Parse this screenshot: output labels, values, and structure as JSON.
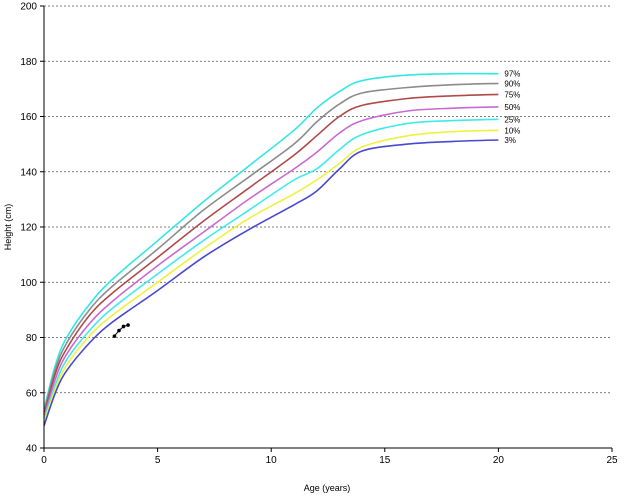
{
  "chart_data": {
    "type": "line",
    "title": "",
    "xlabel": "Age (years)",
    "ylabel": "Height (cm)",
    "xlim": [
      0,
      25
    ],
    "ylim": [
      40,
      200
    ],
    "xticks": [
      0,
      5,
      10,
      15,
      20,
      25
    ],
    "yticks": [
      40,
      60,
      80,
      100,
      120,
      140,
      160,
      180,
      200
    ],
    "grid": "horizontal dashed",
    "legend": "none",
    "series": [
      {
        "name": "97%",
        "color": "#33e6e6",
        "points": [
          [
            0,
            54
          ],
          [
            0.5,
            70
          ],
          [
            1,
            80
          ],
          [
            2,
            92
          ],
          [
            3,
            101
          ],
          [
            5,
            115
          ],
          [
            7,
            129
          ],
          [
            9,
            142
          ],
          [
            11,
            155
          ],
          [
            12,
            163
          ],
          [
            13,
            169
          ],
          [
            14,
            173
          ],
          [
            16,
            175
          ],
          [
            18,
            175.5
          ],
          [
            20,
            175.5
          ]
        ]
      },
      {
        "name": "90%",
        "color": "#8c8c8c",
        "points": [
          [
            0,
            53
          ],
          [
            0.5,
            68.5
          ],
          [
            1,
            78
          ],
          [
            2,
            90
          ],
          [
            3,
            98.5
          ],
          [
            5,
            112
          ],
          [
            7,
            126
          ],
          [
            9,
            138
          ],
          [
            11,
            150
          ],
          [
            12,
            158
          ],
          [
            13,
            164.5
          ],
          [
            14,
            168.5
          ],
          [
            16,
            170.5
          ],
          [
            18,
            171.5
          ],
          [
            20,
            172
          ]
        ]
      },
      {
        "name": "75%",
        "color": "#b04a4a",
        "points": [
          [
            0,
            52
          ],
          [
            0.5,
            67
          ],
          [
            1,
            76
          ],
          [
            2,
            88
          ],
          [
            3,
            96
          ],
          [
            5,
            109
          ],
          [
            7,
            122
          ],
          [
            9,
            134
          ],
          [
            11,
            146
          ],
          [
            12,
            153
          ],
          [
            13,
            160
          ],
          [
            14,
            164
          ],
          [
            16,
            166.5
          ],
          [
            18,
            167.5
          ],
          [
            20,
            168
          ]
        ]
      },
      {
        "name": "50%",
        "color": "#c86ad0",
        "points": [
          [
            0,
            51
          ],
          [
            0.5,
            65
          ],
          [
            1,
            74
          ],
          [
            2,
            85
          ],
          [
            3,
            93
          ],
          [
            5,
            106
          ],
          [
            7,
            118
          ],
          [
            9,
            130
          ],
          [
            11,
            141
          ],
          [
            12,
            147
          ],
          [
            13,
            154
          ],
          [
            14,
            158.5
          ],
          [
            16,
            162
          ],
          [
            18,
            163
          ],
          [
            20,
            163.5
          ]
        ]
      },
      {
        "name": "25%",
        "color": "#40eaea",
        "points": [
          [
            0,
            50
          ],
          [
            0.5,
            63
          ],
          [
            1,
            72
          ],
          [
            2,
            82.5
          ],
          [
            3,
            90.5
          ],
          [
            5,
            103
          ],
          [
            7,
            115
          ],
          [
            9,
            126
          ],
          [
            11,
            137
          ],
          [
            12,
            141
          ],
          [
            13,
            148
          ],
          [
            14,
            153.5
          ],
          [
            16,
            157.5
          ],
          [
            18,
            158.5
          ],
          [
            20,
            159
          ]
        ]
      },
      {
        "name": "10%",
        "color": "#f0f040",
        "points": [
          [
            0,
            49
          ],
          [
            0.5,
            61.5
          ],
          [
            1,
            70
          ],
          [
            2,
            80.5
          ],
          [
            3,
            88
          ],
          [
            5,
            100
          ],
          [
            7,
            112
          ],
          [
            9,
            123
          ],
          [
            11,
            132
          ],
          [
            12,
            137
          ],
          [
            13,
            143
          ],
          [
            14,
            149
          ],
          [
            16,
            153
          ],
          [
            18,
            154.5
          ],
          [
            20,
            155
          ]
        ]
      },
      {
        "name": "3%",
        "color": "#4848d0",
        "points": [
          [
            0,
            48
          ],
          [
            0.5,
            60
          ],
          [
            1,
            68
          ],
          [
            2,
            78
          ],
          [
            3,
            85.5
          ],
          [
            5,
            97
          ],
          [
            7,
            109
          ],
          [
            9,
            119
          ],
          [
            11,
            128
          ],
          [
            12,
            133
          ],
          [
            13,
            141
          ],
          [
            14,
            147.5
          ],
          [
            16,
            150
          ],
          [
            18,
            151
          ],
          [
            20,
            151.5
          ]
        ]
      }
    ],
    "measurements": {
      "name": "",
      "points": [
        [
          3.1,
          80.5
        ],
        [
          3.3,
          82.5
        ],
        [
          3.5,
          84
        ],
        [
          3.7,
          84.5
        ]
      ]
    }
  }
}
